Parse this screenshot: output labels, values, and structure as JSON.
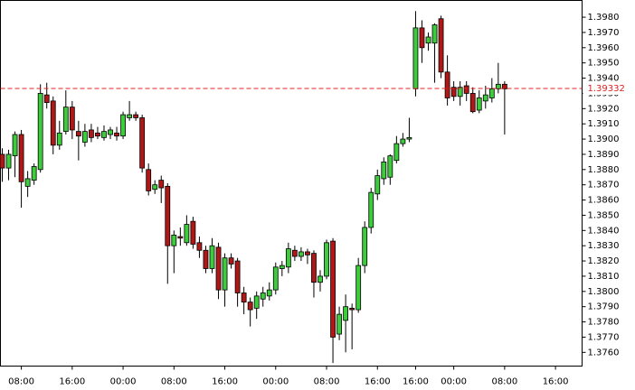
{
  "chart_data": {
    "type": "candlestick",
    "categories": [
      null,
      null,
      null,
      "08:00",
      null,
      null,
      null,
      null,
      null,
      null,
      null,
      "16:00",
      null,
      null,
      null,
      null,
      null,
      null,
      null,
      "00:00",
      null,
      null,
      null,
      null,
      null,
      null,
      null,
      "08:00",
      null,
      null,
      null,
      null,
      null,
      null,
      null,
      "16:00",
      null,
      null,
      null,
      null,
      null,
      null,
      null,
      "00:00",
      null,
      null,
      null,
      null,
      null,
      null,
      null,
      "08:00",
      null,
      null,
      null,
      null,
      null,
      null,
      null,
      "16:00",
      null,
      null,
      null,
      null,
      null,
      "16:00",
      null,
      null,
      null,
      null,
      null,
      "00:00",
      null,
      null,
      null,
      null,
      null,
      null,
      null,
      "08:00",
      null,
      null,
      null,
      null,
      null,
      null,
      null,
      "16:00",
      null,
      null,
      null,
      null
    ],
    "open": [
      1.389,
      1.3881,
      1.3889,
      1.3903,
      1.3869,
      1.3873,
      1.388,
      1.3929,
      1.3925,
      1.3896,
      1.3905,
      1.3921,
      1.3905,
      1.3898,
      1.3906,
      1.3904,
      1.3901,
      1.3903,
      1.3904,
      1.3902,
      1.3914,
      1.3916,
      1.3914,
      1.388,
      1.3867,
      1.3873,
      1.3869,
      1.383,
      1.3836,
      1.3832,
      1.3846,
      1.3832,
      1.3827,
      1.3815,
      1.3829,
      1.3801,
      1.3822,
      1.382,
      1.3799,
      1.3793,
      1.3789,
      1.3795,
      1.3797,
      1.3801,
      1.3815,
      1.3816,
      1.3827,
      1.3823,
      1.3826,
      1.3825,
      1.3806,
      1.381,
      1.3833,
      1.3772,
      1.3781,
      1.3789,
      1.3788,
      1.3817,
      1.3842,
      1.3864,
      1.3874,
      1.3875,
      1.3886,
      1.3897,
      1.39,
      1.3933,
      1.3973,
      1.3963,
      1.3963,
      1.3979,
      1.3944,
      1.3934,
      1.3928,
      1.3935,
      1.393,
      1.3919,
      1.3925,
      1.3927,
      1.3933,
      1.3936,
      null,
      null,
      null,
      null,
      null,
      null,
      null,
      null,
      null,
      null,
      null,
      null
    ],
    "high": [
      1.3894,
      1.3893,
      1.3905,
      1.3906,
      1.3879,
      1.3884,
      1.3936,
      1.3937,
      1.3928,
      1.3912,
      1.3932,
      1.3925,
      1.3912,
      1.391,
      1.391,
      1.3908,
      1.3909,
      1.3908,
      1.3908,
      1.3918,
      1.3925,
      1.3918,
      1.3916,
      1.3884,
      1.3873,
      1.3876,
      1.3871,
      1.384,
      1.3842,
      1.385,
      1.3849,
      1.3836,
      1.383,
      1.3835,
      1.3832,
      1.3825,
      1.3825,
      1.3822,
      1.3803,
      1.3796,
      1.38,
      1.3803,
      1.3806,
      1.3819,
      1.382,
      1.3832,
      1.383,
      1.3829,
      1.3828,
      1.3827,
      1.3814,
      1.3834,
      1.3835,
      1.379,
      1.3798,
      1.3792,
      1.3822,
      1.3846,
      1.3868,
      1.388,
      1.3888,
      1.389,
      1.3902,
      1.3904,
      1.3914,
      1.3984,
      1.3978,
      1.397,
      1.3976,
      1.3981,
      1.3955,
      1.3938,
      1.3938,
      1.3938,
      1.3934,
      1.3932,
      1.3935,
      1.394,
      1.395,
      1.3938,
      null,
      null,
      null,
      null,
      null,
      null,
      null,
      null,
      null,
      null,
      null,
      null
    ],
    "low": [
      1.3872,
      1.3873,
      1.3875,
      1.3855,
      1.3862,
      1.387,
      1.3878,
      1.392,
      1.389,
      1.3893,
      1.3903,
      1.39,
      1.3886,
      1.3895,
      1.3898,
      1.39,
      1.3899,
      1.39,
      1.3899,
      1.39,
      1.3912,
      1.3912,
      1.3878,
      1.3863,
      1.3864,
      1.3858,
      1.3805,
      1.3812,
      1.383,
      1.383,
      1.3828,
      1.3822,
      1.3812,
      1.3812,
      1.3795,
      1.379,
      1.3815,
      1.379,
      1.3785,
      1.3777,
      1.3782,
      1.379,
      1.3794,
      1.3798,
      1.381,
      1.3812,
      1.382,
      1.382,
      1.3818,
      1.3796,
      1.38,
      1.3808,
      1.3753,
      1.3768,
      1.376,
      1.3762,
      1.3786,
      1.3812,
      1.3838,
      1.386,
      1.387,
      1.387,
      1.3884,
      1.3895,
      1.3898,
      1.3928,
      1.395,
      1.3958,
      1.3937,
      1.394,
      1.3922,
      1.3925,
      1.3922,
      1.3925,
      1.3917,
      1.3917,
      1.392,
      1.3924,
      1.393,
      1.3903,
      null,
      null,
      null,
      null,
      null,
      null,
      null,
      null,
      null,
      null,
      null,
      null
    ],
    "close": [
      1.3881,
      1.389,
      1.3903,
      1.3872,
      1.3874,
      1.3882,
      1.393,
      1.3924,
      1.3896,
      1.3904,
      1.3921,
      1.3906,
      1.3902,
      1.3905,
      1.3901,
      1.3902,
      1.3905,
      1.3906,
      1.3902,
      1.3916,
      1.3916,
      1.3914,
      1.3881,
      1.3866,
      1.387,
      1.3868,
      1.383,
      1.3837,
      1.3835,
      1.3844,
      1.3831,
      1.3827,
      1.3815,
      1.383,
      1.3801,
      1.3822,
      1.3818,
      1.3799,
      1.3793,
      1.3788,
      1.3797,
      1.3799,
      1.3801,
      1.3816,
      1.3817,
      1.3828,
      1.3823,
      1.3826,
      1.3824,
      1.3806,
      1.381,
      1.3832,
      1.377,
      1.3785,
      1.379,
      1.3788,
      1.3817,
      1.3842,
      1.3865,
      1.3876,
      1.3885,
      1.3889,
      1.3897,
      1.39,
      1.3901,
      1.3973,
      1.396,
      1.3967,
      1.3975,
      1.3944,
      1.3927,
      1.3928,
      1.3934,
      1.393,
      1.3918,
      1.3927,
      1.3929,
      1.3933,
      1.3936,
      1.3933,
      null,
      null,
      null,
      null,
      null,
      null,
      null,
      null,
      null,
      null,
      null,
      null
    ],
    "up_color": "#3ccc3c",
    "down_color": "#b01818",
    "current_price": 1.39332,
    "price_line_color": "#e02020",
    "ylim": [
      1.3751,
      1.3991
    ],
    "yticks": [
      {
        "value": 1.376,
        "label": "1.3760"
      },
      {
        "value": 1.377,
        "label": "1.3770"
      },
      {
        "value": 1.378,
        "label": "1.3780"
      },
      {
        "value": 1.379,
        "label": "1.3790"
      },
      {
        "value": 1.38,
        "label": "1.3800"
      },
      {
        "value": 1.381,
        "label": "1.3810"
      },
      {
        "value": 1.382,
        "label": "1.3820"
      },
      {
        "value": 1.383,
        "label": "1.3830"
      },
      {
        "value": 1.384,
        "label": "1.3840"
      },
      {
        "value": 1.385,
        "label": "1.3850"
      },
      {
        "value": 1.386,
        "label": "1.3860"
      },
      {
        "value": 1.387,
        "label": "1.3870"
      },
      {
        "value": 1.388,
        "label": "1.3880"
      },
      {
        "value": 1.389,
        "label": "1.3890"
      },
      {
        "value": 1.39,
        "label": "1.3900"
      },
      {
        "value": 1.391,
        "label": "1.3910"
      },
      {
        "value": 1.392,
        "label": "1.3920"
      },
      {
        "value": 1.393,
        "label": "1.3930"
      },
      {
        "value": 1.394,
        "label": "1.3940"
      },
      {
        "value": 1.395,
        "label": "1.3950"
      },
      {
        "value": 1.396,
        "label": "1.3960"
      },
      {
        "value": 1.397,
        "label": "1.3970"
      },
      {
        "value": 1.398,
        "label": "1.3980"
      }
    ],
    "grid": false
  }
}
